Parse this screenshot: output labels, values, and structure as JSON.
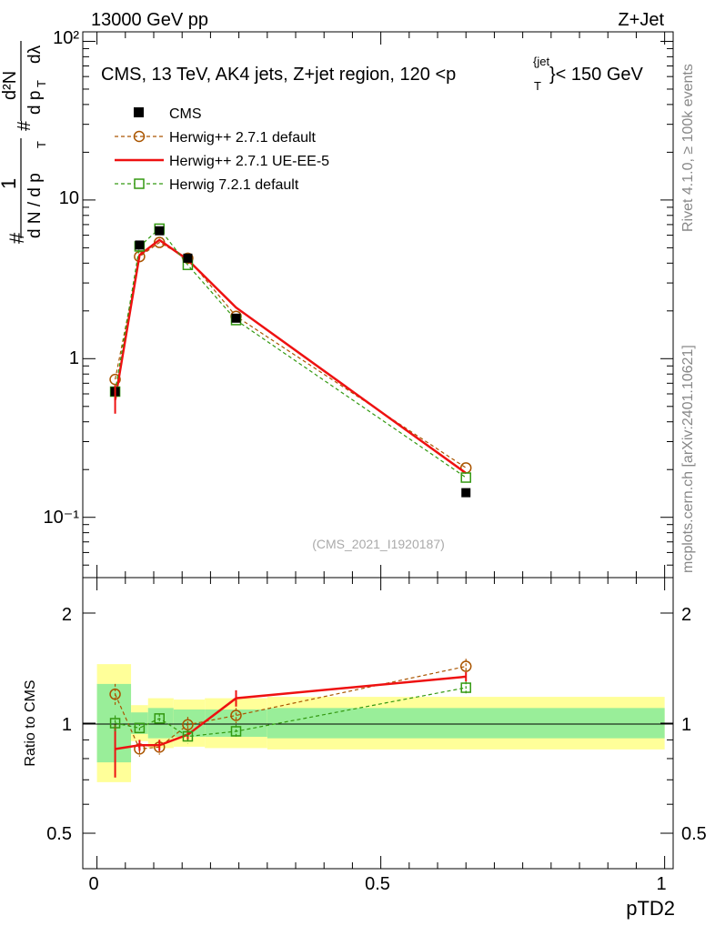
{
  "header": {
    "energy": "13000 GeV pp",
    "process": "Z+Jet",
    "title_main": "CMS, 13 TeV, AK4 jets, Z+jet region, 120 <p",
    "title_sup": "{jet",
    "title_sub": "T",
    "title_tail": "}< 150 GeV",
    "analysis_id": "(CMS_2021_I1920187)",
    "side_version": "Rivet 4.1.0, ≥ 100k events",
    "side_site": "mcplots.cern.ch [arXiv:2401.10621]"
  },
  "ylabel": {
    "hash1": "#",
    "one": "1",
    "dN": "d N / d p",
    "T1": "T",
    "hash2": "#",
    "d2N": "d²N",
    "dp": "d p",
    "T2": "T",
    "dlambda": "dλ"
  },
  "main_axis": {
    "tick_labels": [
      "10⁻¹",
      "1",
      "10",
      "10²"
    ]
  },
  "ratio_axis": {
    "ylabel": "Ratio to CMS",
    "tick_labels": [
      "0.5",
      "1",
      "2"
    ]
  },
  "xaxis": {
    "xlabel": "pTD2",
    "tick_labels": [
      "0",
      "0.5",
      "1"
    ]
  },
  "chart_data": {
    "type": "line",
    "xlim": [
      -0.025,
      1.015
    ],
    "main_ylim_log10": [
      -1.38,
      2.06
    ],
    "ratio_ylim_log10": [
      -0.398,
      0.398
    ],
    "x": [
      0.032,
      0.075,
      0.11,
      0.16,
      0.245,
      0.65
    ],
    "bin_edges": [
      0.0,
      0.06,
      0.09,
      0.135,
      0.19,
      0.3,
      1.0
    ],
    "data": {
      "name": "CMS",
      "values": [
        0.62,
        5.2,
        6.4,
        4.3,
        1.8,
        0.143
      ]
    },
    "band_inner": [
      1.28,
      1.07,
      1.1,
      1.09,
      1.09,
      1.1
    ],
    "band_outer": [
      1.45,
      1.12,
      1.17,
      1.16,
      1.17,
      1.18
    ],
    "series": [
      {
        "name": "Herwig++ 2.7.1 default",
        "color": "#aa5500",
        "dashed": true,
        "marker": "circle",
        "values": [
          0.74,
          4.4,
          5.4,
          4.3,
          1.85,
          0.205
        ],
        "ratio": [
          1.2,
          0.85,
          0.86,
          0.99,
          1.05,
          1.43
        ],
        "ratio_err": [
          0.08,
          0.04,
          0.04,
          0.05,
          0.05,
          0.07
        ]
      },
      {
        "name": "Herwig++ 2.7.1 UE-EE-5",
        "color": "#ee1111",
        "dashed": false,
        "marker": "none",
        "values": [
          0.55,
          4.5,
          5.6,
          4.2,
          2.1,
          0.19
        ],
        "ratio": [
          0.85,
          0.87,
          0.87,
          0.93,
          1.17,
          1.34
        ],
        "ratio_err": [
          0.14,
          0.03,
          0.03,
          0.03,
          0.06,
          0.04
        ]
      },
      {
        "name": "Herwig 7.2.1 default",
        "color": "#339911",
        "dashed": true,
        "marker": "square",
        "values": [
          0.62,
          5.1,
          6.6,
          3.9,
          1.75,
          0.178
        ],
        "ratio": [
          1.0,
          0.97,
          1.03,
          0.92,
          0.95,
          1.25
        ],
        "ratio_err": [
          0.05,
          0.03,
          0.03,
          0.04,
          0.04,
          0.05
        ]
      }
    ]
  }
}
